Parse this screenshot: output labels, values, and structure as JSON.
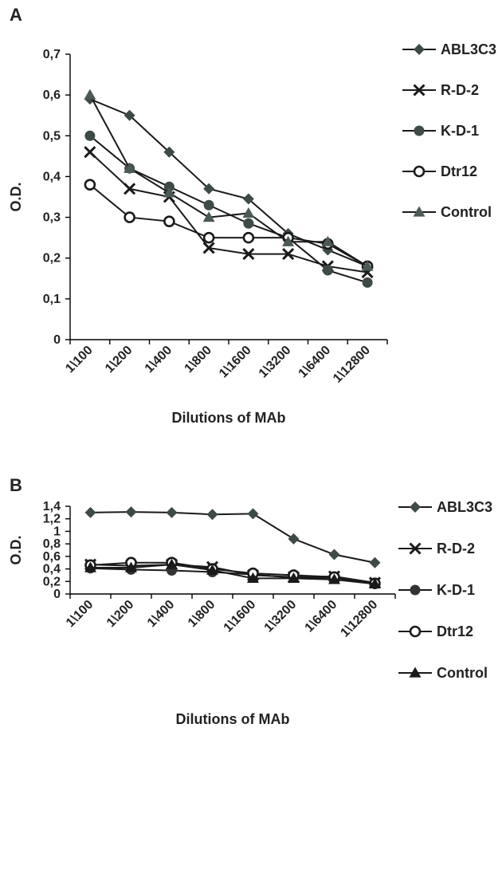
{
  "chart_data": [
    {
      "type": "line",
      "panel_label": "A",
      "xlabel": "Dilutions of MAb",
      "ylabel": "O.D.",
      "ylim": [
        0,
        0.7
      ],
      "yticks": [
        "0",
        "0,1",
        "0,2",
        "0,3",
        "0,4",
        "0,5",
        "0,6",
        "0,7"
      ],
      "categories": [
        "1\\100",
        "1\\200",
        "1\\400",
        "1\\800",
        "1\\1600",
        "1\\3200",
        "1\\6400",
        "1\\12800"
      ],
      "grid": false,
      "legend_position": "right",
      "series": [
        {
          "name": "ABL3C3",
          "marker": "diamond",
          "color": "#3d4a48",
          "values": [
            0.59,
            0.55,
            0.46,
            0.37,
            0.345,
            0.26,
            0.22,
            0.18
          ]
        },
        {
          "name": "R-D-2",
          "marker": "x",
          "color": "#1a1a1a",
          "values": [
            0.46,
            0.37,
            0.35,
            0.225,
            0.21,
            0.21,
            0.18,
            0.165
          ]
        },
        {
          "name": "K-D-1",
          "marker": "circle",
          "color": "#3d4a48",
          "values": [
            0.5,
            0.42,
            0.375,
            0.33,
            0.285,
            0.25,
            0.17,
            0.14
          ]
        },
        {
          "name": "Dtr12",
          "marker": "open-circle",
          "color": "#1a1a1a",
          "values": [
            0.38,
            0.3,
            0.29,
            0.25,
            0.25,
            0.25,
            0.235,
            0.18
          ]
        },
        {
          "name": "Control",
          "marker": "triangle",
          "color": "#4b5a57",
          "values": [
            0.6,
            0.42,
            0.36,
            0.3,
            0.31,
            0.24,
            0.24,
            0.18
          ]
        }
      ]
    },
    {
      "type": "line",
      "panel_label": "B",
      "xlabel": "Dilutions of MAb",
      "ylabel": "O.D.",
      "ylim": [
        0,
        1.4
      ],
      "yticks": [
        "0",
        "0,2",
        "0,4",
        "0,6",
        "0,8",
        "1",
        "1,2",
        "1,4"
      ],
      "categories": [
        "1\\100",
        "1\\200",
        "1\\400",
        "1\\800",
        "1\\1600",
        "1\\3200",
        "1\\6400",
        "1\\12800"
      ],
      "grid": false,
      "legend_position": "right",
      "series": [
        {
          "name": "ABL3C3",
          "marker": "diamond",
          "color": "#3d4a48",
          "values": [
            1.3,
            1.31,
            1.3,
            1.27,
            1.28,
            0.88,
            0.63,
            0.5
          ]
        },
        {
          "name": "R-D-2",
          "marker": "x",
          "color": "#1a1a1a",
          "values": [
            0.47,
            0.45,
            0.47,
            0.43,
            0.3,
            0.27,
            0.28,
            0.18
          ]
        },
        {
          "name": "K-D-1",
          "marker": "circle",
          "color": "#333333",
          "values": [
            0.41,
            0.39,
            0.375,
            0.35,
            0.31,
            0.26,
            0.26,
            0.16
          ]
        },
        {
          "name": "Dtr12",
          "marker": "open-circle",
          "color": "#1a1a1a",
          "values": [
            0.46,
            0.5,
            0.5,
            0.4,
            0.33,
            0.3,
            0.27,
            0.17
          ]
        },
        {
          "name": "Control",
          "marker": "triangle",
          "color": "#1a1a1a",
          "values": [
            0.42,
            0.42,
            0.47,
            0.38,
            0.25,
            0.25,
            0.23,
            0.16
          ]
        }
      ]
    }
  ]
}
